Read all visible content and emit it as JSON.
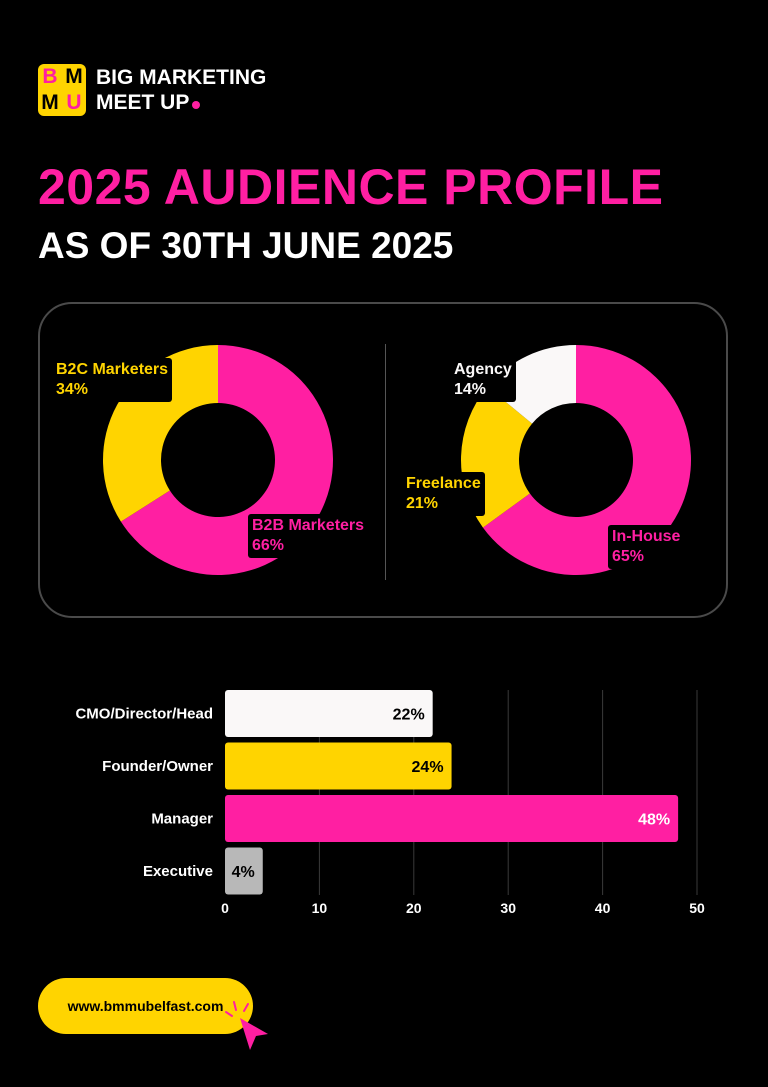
{
  "brand": {
    "logo_letters": [
      "B",
      "M",
      "M",
      "U"
    ],
    "name_line1": "BIG MARKETING",
    "name_line2": "MEET UP"
  },
  "title": "2025 AUDIENCE PROFILE",
  "subtitle": "AS OF 30TH JUNE 2025",
  "colors": {
    "pink": "#FF1FA2",
    "yellow": "#FFD400",
    "white": "#FAF8F8",
    "grey": "#B8B8B8",
    "background": "#000000"
  },
  "chart_data": [
    {
      "type": "pie",
      "title": "",
      "series": [
        {
          "name": "B2B Marketers",
          "value": 66,
          "label": "66%",
          "color": "#FF1FA2"
        },
        {
          "name": "B2C Marketers",
          "value": 34,
          "label": "34%",
          "color": "#FFD400"
        }
      ]
    },
    {
      "type": "pie",
      "title": "",
      "series": [
        {
          "name": "In-House",
          "value": 65,
          "label": "65%",
          "color": "#FF1FA2"
        },
        {
          "name": "Freelance",
          "value": 21,
          "label": "21%",
          "color": "#FFD400"
        },
        {
          "name": "Agency",
          "value": 14,
          "label": "14%",
          "color": "#FAF8F8"
        }
      ]
    },
    {
      "type": "bar",
      "orientation": "horizontal",
      "title": "",
      "xlabel": "",
      "ylabel": "",
      "categories": [
        "CMO/Director/Head",
        "Founder/Owner",
        "Manager",
        "Executive"
      ],
      "values": [
        22,
        24,
        48,
        4
      ],
      "value_labels": [
        "22%",
        "24%",
        "48%",
        "4%"
      ],
      "colors": [
        "#FAF8F8",
        "#FFD400",
        "#FF1FA2",
        "#B8B8B8"
      ],
      "xlim": [
        0,
        50
      ],
      "xticks": [
        "0",
        "10",
        "20",
        "30",
        "40",
        "50"
      ],
      "grid": "vertical"
    }
  ],
  "footer": {
    "url": "www.bmmubelfast.com"
  }
}
